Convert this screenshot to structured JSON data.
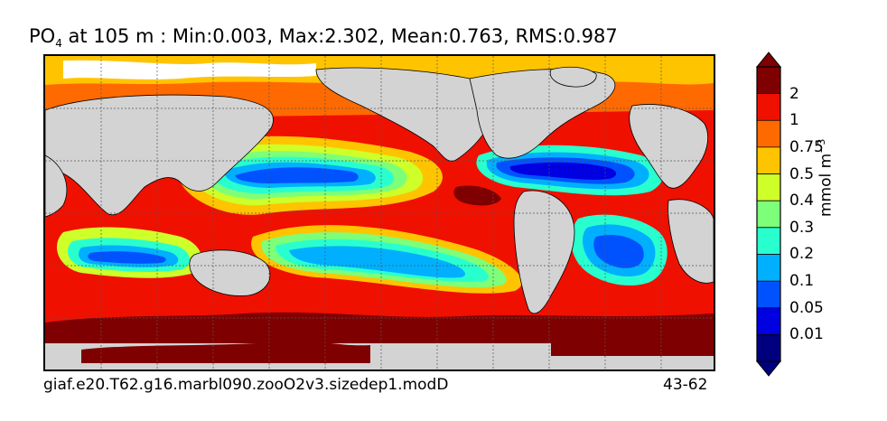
{
  "title": {
    "variable": "PO",
    "subscript": "4",
    "rest": " at 105 m : Min:0.003, Max:2.302, Mean:0.763, RMS:0.987"
  },
  "footer": {
    "case_name": "giaf.e20.T62.g16.marbl090.zooO2v3.sizedep1.modD",
    "years": "43-62"
  },
  "colorbar": {
    "unit_base": "mmol m",
    "unit_exp": "−3",
    "levels": [
      "0.01",
      "0.05",
      "0.1",
      "0.2",
      "0.3",
      "0.4",
      "0.5",
      "0.75",
      "1",
      "2"
    ],
    "colors": [
      "#00007f",
      "#0000e0",
      "#0052ff",
      "#00b0ff",
      "#29ffce",
      "#7dff7a",
      "#ceff29",
      "#ffc400",
      "#ff6a00",
      "#f01000",
      "#7f0000"
    ],
    "extend": "both"
  },
  "map_colors": {
    "land": "#d3d3d3",
    "sea_ice": "#ffffff",
    "coast": "#000000",
    "grid": "#555555"
  }
}
